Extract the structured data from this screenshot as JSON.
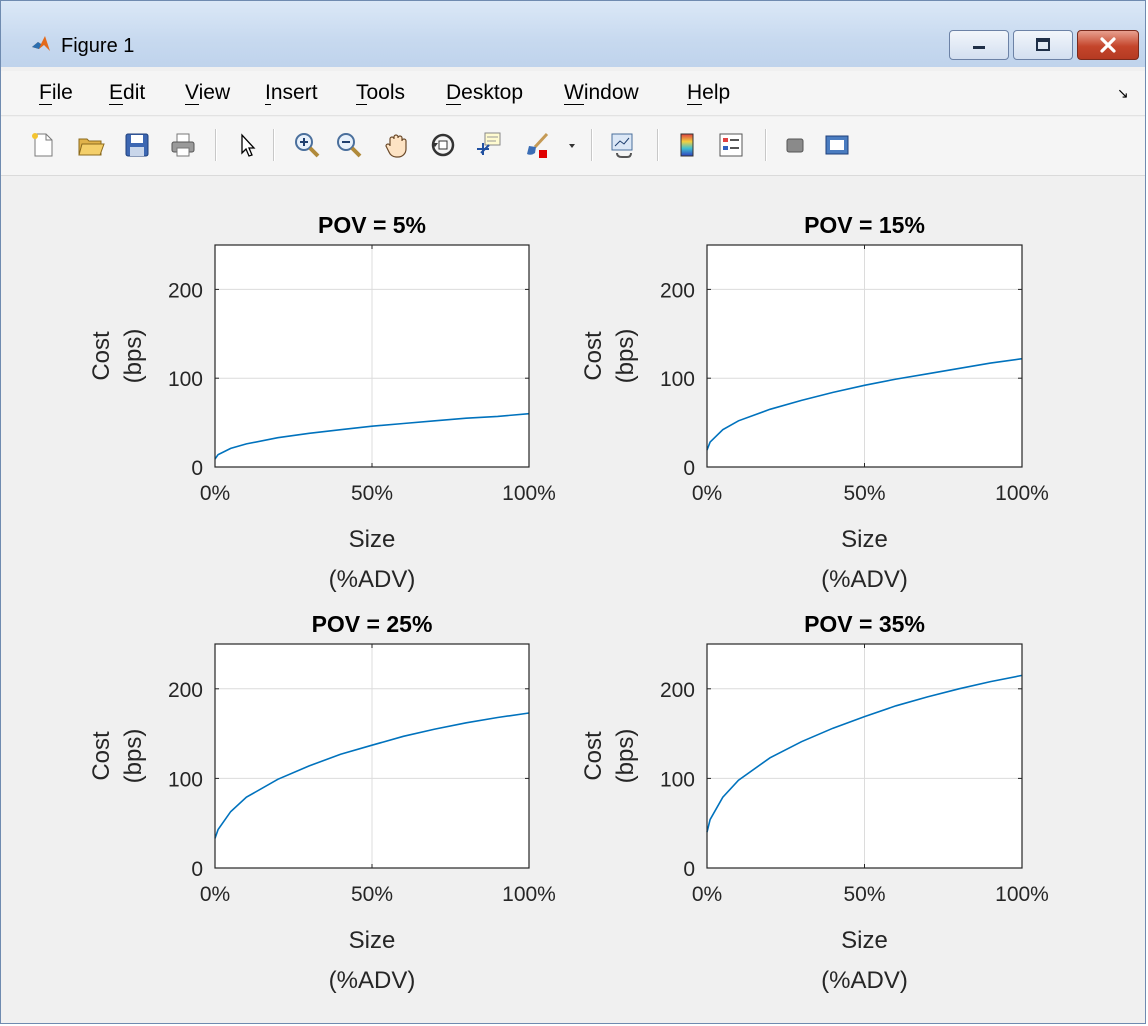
{
  "window": {
    "title": "Figure 1",
    "controls": [
      "minimize",
      "maximize",
      "close"
    ]
  },
  "menu": [
    {
      "label": "File",
      "mnemonic": "F",
      "rest": "ile"
    },
    {
      "label": "Edit",
      "mnemonic": "E",
      "rest": "dit"
    },
    {
      "label": "View",
      "mnemonic": "V",
      "rest": "iew"
    },
    {
      "label": "Insert",
      "mnemonic": "I",
      "rest": "nsert"
    },
    {
      "label": "Tools",
      "mnemonic": "T",
      "rest": "ools"
    },
    {
      "label": "Desktop",
      "mnemonic": "D",
      "rest": "esktop"
    },
    {
      "label": "Window",
      "mnemonic": "W",
      "rest": "indow"
    },
    {
      "label": "Help",
      "mnemonic": "H",
      "rest": "elp"
    }
  ],
  "toolbar": {
    "icons": [
      "new-figure-icon",
      "open-icon",
      "save-icon",
      "print-icon",
      "select-arrow-icon",
      "zoom-in-icon",
      "zoom-out-icon",
      "pan-hand-icon",
      "rotate-3d-icon",
      "data-cursor-icon",
      "brush-icon",
      "brush-dropdown-icon",
      "link-plot-icon",
      "colorbar-icon",
      "legend-icon",
      "hide-plot-tools-icon",
      "show-plot-tools-icon"
    ]
  },
  "colors": {
    "line": "#0072bd",
    "grid": "#dcdcdc",
    "axes_text": "#262626"
  },
  "chart_data": [
    {
      "type": "line",
      "title": "POV = 5%",
      "xlabel": [
        "Size",
        "(%ADV)"
      ],
      "ylabel": [
        "Cost",
        "(bps)"
      ],
      "xlim": [
        0,
        100
      ],
      "ylim": [
        0,
        250
      ],
      "xticks": [
        "0%",
        "50%",
        "100%"
      ],
      "yticks": [
        "0",
        "100",
        "200"
      ],
      "grid": true,
      "series": [
        {
          "x": [
            0,
            1,
            5,
            10,
            20,
            30,
            40,
            50,
            60,
            70,
            80,
            90,
            100
          ],
          "values": [
            9,
            14,
            21,
            26,
            33,
            38,
            42,
            46,
            49,
            52,
            55,
            57,
            60
          ]
        }
      ]
    },
    {
      "type": "line",
      "title": "POV = 15%",
      "xlabel": [
        "Size",
        "(%ADV)"
      ],
      "ylabel": [
        "Cost",
        "(bps)"
      ],
      "xlim": [
        0,
        100
      ],
      "ylim": [
        0,
        250
      ],
      "xticks": [
        "0%",
        "50%",
        "100%"
      ],
      "yticks": [
        "0",
        "100",
        "200"
      ],
      "grid": true,
      "series": [
        {
          "x": [
            0,
            1,
            5,
            10,
            20,
            30,
            40,
            50,
            60,
            70,
            80,
            90,
            100
          ],
          "values": [
            19,
            28,
            42,
            52,
            65,
            75,
            84,
            92,
            99,
            105,
            111,
            117,
            122
          ]
        }
      ]
    },
    {
      "type": "line",
      "title": "POV = 25%",
      "xlabel": [
        "Size",
        "(%ADV)"
      ],
      "ylabel": [
        "Cost",
        "(bps)"
      ],
      "xlim": [
        0,
        100
      ],
      "ylim": [
        0,
        250
      ],
      "xticks": [
        "0%",
        "50%",
        "100%"
      ],
      "yticks": [
        "0",
        "100",
        "200"
      ],
      "grid": true,
      "series": [
        {
          "x": [
            0,
            1,
            5,
            10,
            20,
            30,
            40,
            50,
            60,
            70,
            80,
            90,
            100
          ],
          "values": [
            33,
            43,
            63,
            79,
            99,
            114,
            127,
            137,
            147,
            155,
            162,
            168,
            173
          ]
        }
      ]
    },
    {
      "type": "line",
      "title": "POV = 35%",
      "xlabel": [
        "Size",
        "(%ADV)"
      ],
      "ylabel": [
        "Cost",
        "(bps)"
      ],
      "xlim": [
        0,
        100
      ],
      "ylim": [
        0,
        250
      ],
      "xticks": [
        "0%",
        "50%",
        "100%"
      ],
      "yticks": [
        "0",
        "100",
        "200"
      ],
      "grid": true,
      "series": [
        {
          "x": [
            0,
            1,
            5,
            10,
            20,
            30,
            40,
            50,
            60,
            70,
            80,
            90,
            100
          ],
          "values": [
            40,
            54,
            79,
            98,
            123,
            141,
            156,
            169,
            181,
            191,
            200,
            208,
            215
          ]
        }
      ]
    }
  ]
}
